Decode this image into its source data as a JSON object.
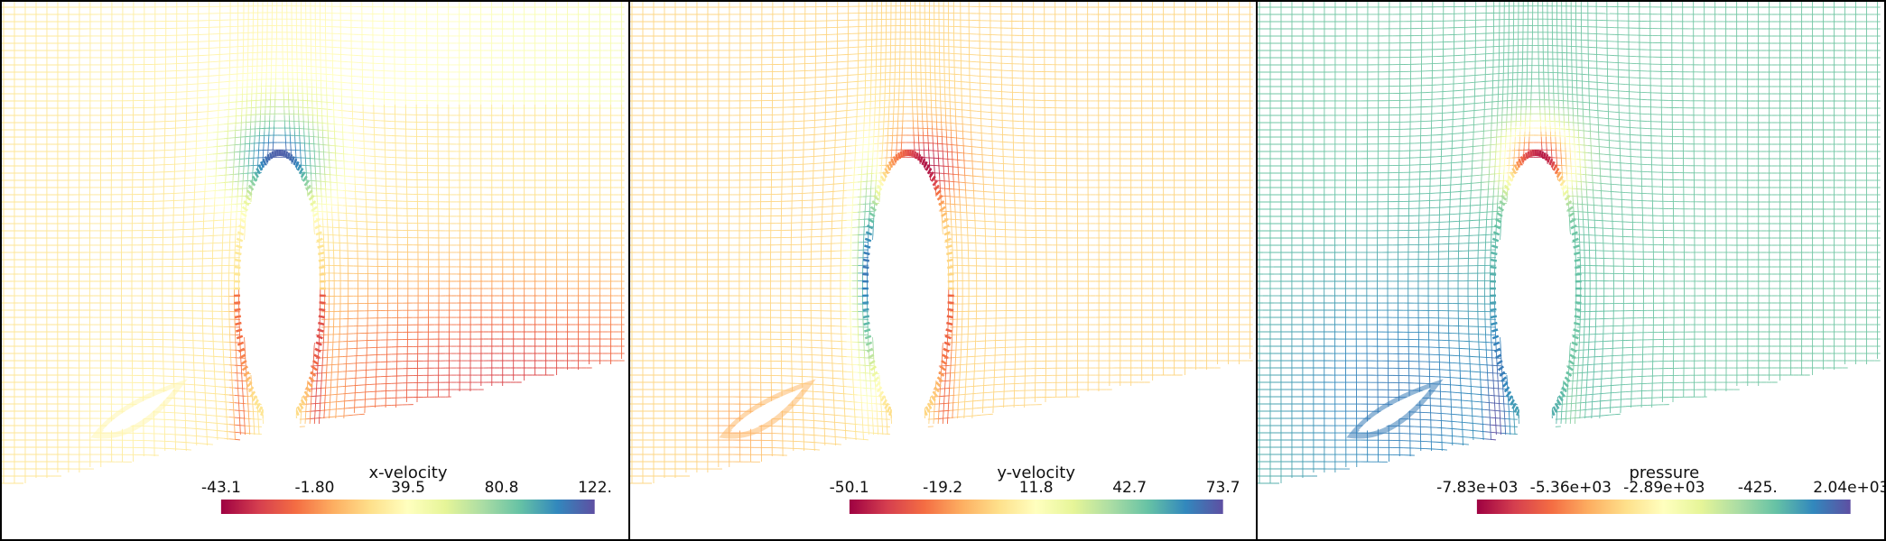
{
  "panels": [
    {
      "field": "x-velocity",
      "ticks": [
        "-43.1",
        "-1.80",
        "39.5",
        "80.8",
        "122."
      ],
      "colormap": "Spectral",
      "colormap_reversed": false,
      "background_level": 0.42
    },
    {
      "field": "y-velocity",
      "ticks": [
        "-50.1",
        "-19.2",
        "11.8",
        "42.7",
        "73.7"
      ],
      "colormap": "Spectral",
      "colormap_reversed": false,
      "background_level": 0.38
    },
    {
      "field": "pressure",
      "ticks": [
        "-7.83e+03",
        "-5.36e+03",
        "-2.89e+03",
        "-425.",
        "2.04e+03"
      ],
      "colormap": "Spectral",
      "colormap_reversed": false,
      "background_level": 0.78
    }
  ],
  "colors": {
    "spectral": [
      "#9e0142",
      "#d53e4f",
      "#f46d43",
      "#fdae61",
      "#fee08b",
      "#ffffbf",
      "#e6f598",
      "#abdda4",
      "#66c2a5",
      "#3288bd",
      "#5e4fa2"
    ]
  }
}
